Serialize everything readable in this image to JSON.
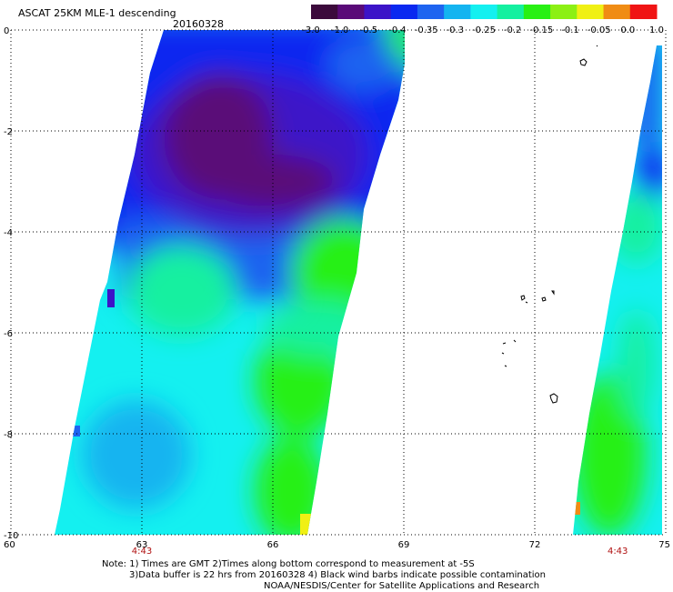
{
  "header": {
    "title": "ASCAT 25KM MLE-1 descending",
    "date": "20160328"
  },
  "colorbar": {
    "tick_labels": [
      "-3.0",
      "-1.0",
      "-0.5",
      "-0.4",
      "-0.35",
      "-0.3",
      "-0.25",
      "-0.2",
      "-0.15",
      "-0.1",
      "-0.05",
      "0.0",
      "1.0"
    ],
    "colors": [
      "#3c0a3c",
      "#5a0a78",
      "#3c14c8",
      "#0a28f0",
      "#1e64f0",
      "#14b4f0",
      "#14f0f0",
      "#14f0a0",
      "#28f014",
      "#8cf014",
      "#f0f014",
      "#f08c14",
      "#f01414"
    ]
  },
  "map": {
    "lon_ticks": [
      60,
      63,
      66,
      69,
      72,
      75
    ],
    "lat_ticks": [
      0,
      -2,
      -4,
      -6,
      -8,
      -10
    ],
    "lon_labels": [
      "60",
      "63",
      "66",
      "69",
      "72",
      "75"
    ],
    "lat_labels": [
      "0",
      "-2",
      "-4",
      "-6",
      "-8",
      "-10"
    ],
    "pass_times": [
      {
        "lon": 63.0,
        "label": "4:43"
      },
      {
        "lon": 73.9,
        "label": "4:43"
      }
    ]
  },
  "notes": {
    "line1": "Note: 1) Times are GMT 2)Times along bottom correspond to measurement at -5S",
    "line2": "3)Data buffer is 22 hrs from 20160328 4) Black wind barbs indicate possible contamination",
    "line3": "NOAA/NESDIS/Center for Satellite Applications and Research"
  }
}
